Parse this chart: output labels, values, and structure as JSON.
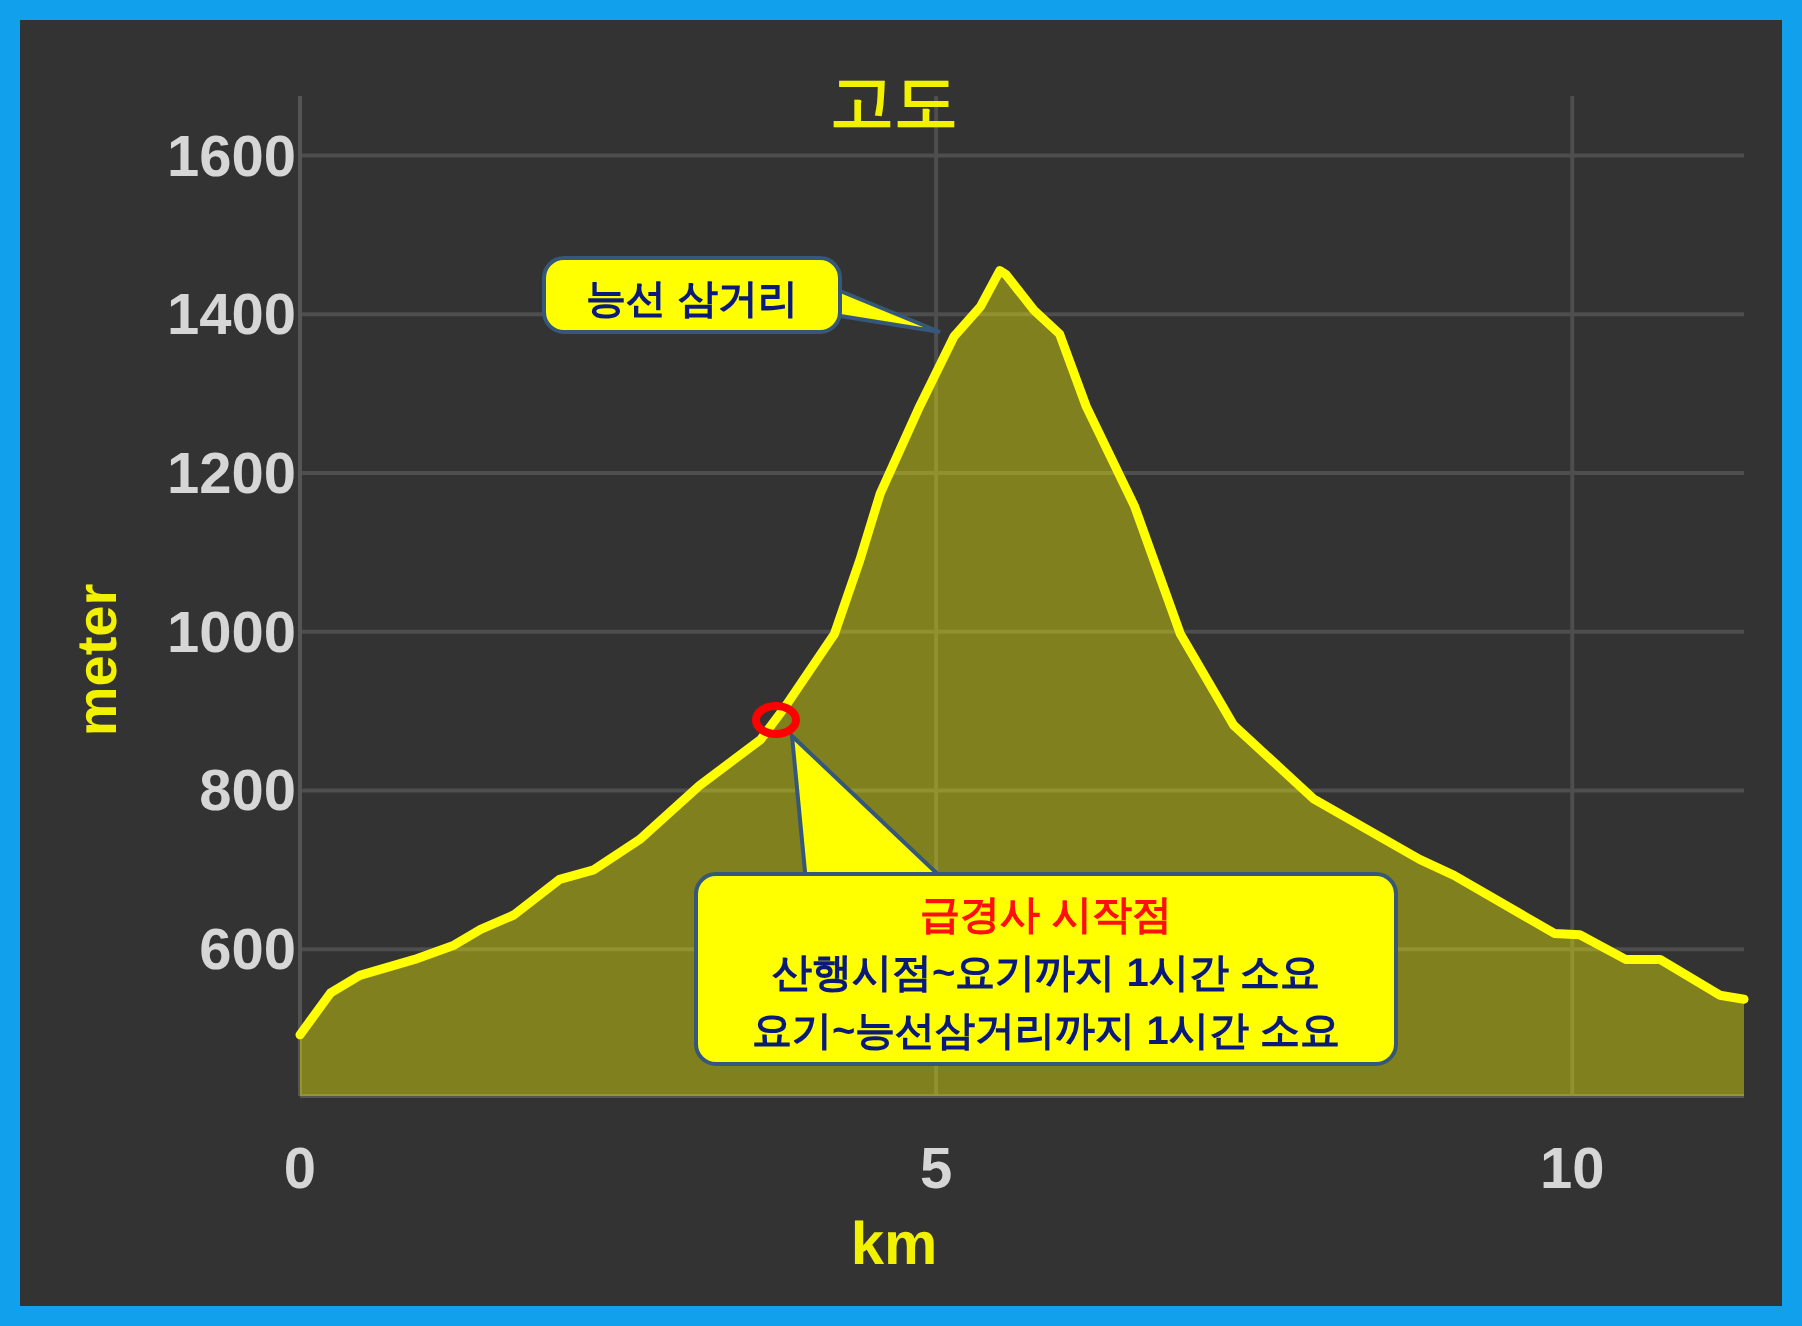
{
  "chart_data": {
    "type": "area",
    "title": "고도",
    "xlabel": "km",
    "ylabel": "meter",
    "xlim": [
      0,
      11.35
    ],
    "ylim": [
      415,
      1675
    ],
    "xticks": [
      0,
      5,
      10
    ],
    "yticks": [
      600,
      800,
      1000,
      1200,
      1400,
      1600
    ],
    "grid": true,
    "series": [
      {
        "color": "#ffff00",
        "x": [
          0,
          0.24,
          0.47,
          0.9,
          1.21,
          1.42,
          1.68,
          2.04,
          2.31,
          2.67,
          3.14,
          3.62,
          3.82,
          4.2,
          4.4,
          4.56,
          4.87,
          5.14,
          5.35,
          5.5,
          5.55,
          5.77,
          5.97,
          6.18,
          6.56,
          6.92,
          7.34,
          7.97,
          8.8,
          9.07,
          9.86,
          10.06,
          10.42,
          10.69,
          11.16,
          11.35
        ],
        "values": [
          492,
          545,
          567,
          587,
          605,
          625,
          643,
          688,
          700,
          738,
          806,
          864,
          907,
          997,
          1090,
          1174,
          1284,
          1372,
          1410,
          1455,
          1450,
          1405,
          1375,
          1284,
          1158,
          997,
          882,
          789,
          713,
          693,
          620,
          618,
          587,
          587,
          542,
          537
        ]
      }
    ],
    "annotations": [
      "능선 삼거리",
      "급경사 시작점\n산행시점~요기까지 1시간 소요\n요기~능선삼거리까지 1시간 소요"
    ]
  }
}
